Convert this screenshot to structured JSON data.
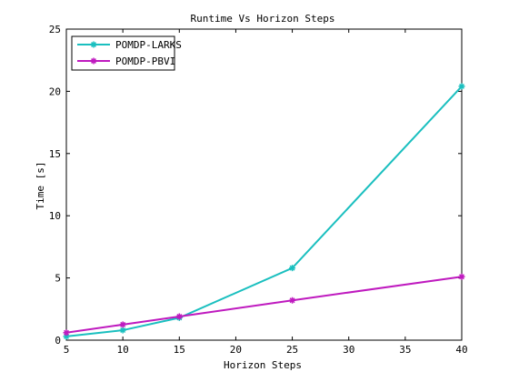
{
  "chart_data": {
    "type": "line",
    "title": "Runtime Vs Horizon Steps",
    "xlabel": "Horizon Steps",
    "ylabel": "Time [s]",
    "xlim": [
      5,
      40
    ],
    "ylim": [
      0,
      25
    ],
    "xticks": [
      5,
      10,
      15,
      20,
      25,
      30,
      35,
      40
    ],
    "yticks": [
      0,
      5,
      10,
      15,
      20,
      25
    ],
    "grid": false,
    "legend_position": "top-left",
    "series": [
      {
        "name": "POMDP-LARKS",
        "color": "#1ABFBF",
        "marker": "star",
        "x": [
          5,
          10,
          15,
          25,
          40
        ],
        "y": [
          0.3,
          0.8,
          1.8,
          5.8,
          20.4
        ]
      },
      {
        "name": "POMDP-PBVI",
        "color": "#BF1ABF",
        "marker": "star",
        "x": [
          5,
          10,
          15,
          25,
          40
        ],
        "y": [
          0.6,
          1.25,
          1.9,
          3.2,
          5.1
        ]
      }
    ]
  }
}
